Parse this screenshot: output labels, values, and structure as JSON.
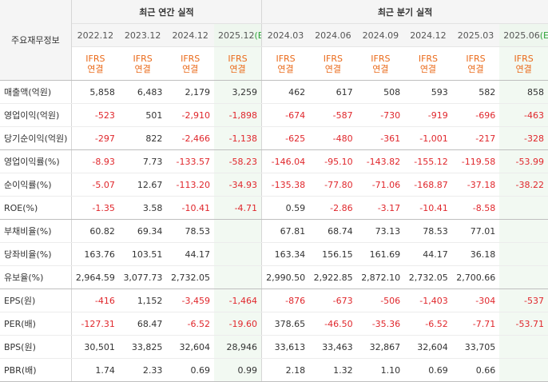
{
  "header": {
    "corner_label": "주요재무정보",
    "annual_title": "최근 연간 실적",
    "quarter_title": "최근 분기 실적",
    "annual_periods": [
      {
        "label": "2022.12",
        "estimate": false,
        "mark": ""
      },
      {
        "label": "2023.12",
        "estimate": false,
        "mark": ""
      },
      {
        "label": "2024.12",
        "estimate": false,
        "mark": ""
      },
      {
        "label": "2025.12",
        "estimate": true,
        "mark": "(E)"
      }
    ],
    "quarter_periods": [
      {
        "label": "2024.03",
        "estimate": false,
        "mark": ""
      },
      {
        "label": "2024.06",
        "estimate": false,
        "mark": ""
      },
      {
        "label": "2024.09",
        "estimate": false,
        "mark": ""
      },
      {
        "label": "2024.12",
        "estimate": false,
        "mark": ""
      },
      {
        "label": "2025.03",
        "estimate": false,
        "mark": ""
      },
      {
        "label": "2025.06",
        "estimate": true,
        "mark": "(E)"
      }
    ],
    "basis_line1": "IFRS",
    "basis_line2": "연결"
  },
  "rows": [
    {
      "label": "매출액(억원)",
      "values": [
        "5,858",
        "6,483",
        "2,179",
        "3,259",
        "462",
        "617",
        "508",
        "593",
        "582",
        "858"
      ]
    },
    {
      "label": "영업이익(억원)",
      "values": [
        "-523",
        "501",
        "-2,910",
        "-1,898",
        "-674",
        "-587",
        "-730",
        "-919",
        "-696",
        "-463"
      ]
    },
    {
      "label": "당기순이익(억원)",
      "values": [
        "-297",
        "822",
        "-2,466",
        "-1,138",
        "-625",
        "-480",
        "-361",
        "-1,001",
        "-217",
        "-328"
      ]
    },
    {
      "label": "영업이익률(%)",
      "values": [
        "-8.93",
        "7.73",
        "-133.57",
        "-58.23",
        "-146.04",
        "-95.10",
        "-143.82",
        "-155.12",
        "-119.58",
        "-53.99"
      ]
    },
    {
      "label": "순이익률(%)",
      "values": [
        "-5.07",
        "12.67",
        "-113.20",
        "-34.93",
        "-135.38",
        "-77.80",
        "-71.06",
        "-168.87",
        "-37.18",
        "-38.22"
      ]
    },
    {
      "label": "ROE(%)",
      "values": [
        "-1.35",
        "3.58",
        "-10.41",
        "-4.71",
        "0.59",
        "-2.86",
        "-3.17",
        "-10.41",
        "-8.58",
        ""
      ]
    },
    {
      "label": "부채비율(%)",
      "values": [
        "60.82",
        "69.34",
        "78.53",
        "",
        "67.81",
        "68.74",
        "73.13",
        "78.53",
        "77.01",
        ""
      ]
    },
    {
      "label": "당좌비율(%)",
      "values": [
        "163.76",
        "103.51",
        "44.17",
        "",
        "163.34",
        "156.15",
        "161.69",
        "44.17",
        "36.18",
        ""
      ]
    },
    {
      "label": "유보율(%)",
      "values": [
        "2,964.59",
        "3,077.73",
        "2,732.05",
        "",
        "2,990.50",
        "2,922.85",
        "2,872.10",
        "2,732.05",
        "2,700.66",
        ""
      ]
    },
    {
      "label": "EPS(원)",
      "values": [
        "-416",
        "1,152",
        "-3,459",
        "-1,464",
        "-876",
        "-673",
        "-506",
        "-1,403",
        "-304",
        "-537"
      ]
    },
    {
      "label": "PER(배)",
      "values": [
        "-127.31",
        "68.47",
        "-6.52",
        "-19.60",
        "378.65",
        "-46.50",
        "-35.36",
        "-6.52",
        "-7.71",
        "-53.71"
      ]
    },
    {
      "label": "BPS(원)",
      "values": [
        "30,501",
        "33,825",
        "32,604",
        "28,946",
        "33,613",
        "33,463",
        "32,867",
        "32,604",
        "33,705",
        ""
      ]
    },
    {
      "label": "PBR(배)",
      "values": [
        "1.74",
        "2.33",
        "0.69",
        "0.99",
        "2.18",
        "1.32",
        "1.10",
        "0.69",
        "0.66",
        ""
      ]
    }
  ],
  "group_end_rows": [
    2,
    5,
    8,
    12
  ],
  "colors": {
    "negative": "#e0272c",
    "basis_text": "#ea6a1a",
    "estimate_mark": "#2fa33a",
    "estimate_bg": "#f2f9f2"
  }
}
